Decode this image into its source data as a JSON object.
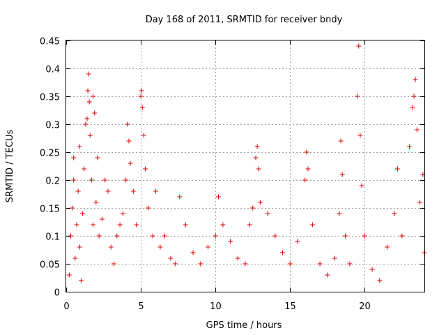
{
  "chart_data": {
    "type": "scatter",
    "title": "Day 168 of 2011, SRMTID for receiver bndy",
    "xlabel": "GPS time / hours",
    "ylabel": "SRMTID / TECUs",
    "xlim": [
      0,
      24
    ],
    "ylim": [
      0,
      0.45
    ],
    "xticks": [
      0,
      5,
      10,
      15,
      20
    ],
    "yticks": [
      0,
      0.05,
      0.1,
      0.15,
      0.2,
      0.25,
      0.3,
      0.35,
      0.4,
      0.45
    ],
    "xtick_labels": [
      "0",
      "5",
      "10",
      "15",
      "20"
    ],
    "ytick_labels": [
      "0",
      "0.05",
      "0.1",
      "0.15",
      "0.2",
      "0.25",
      "0.3",
      "0.35",
      "0.4",
      "0.45"
    ],
    "grid": true,
    "marker": "+",
    "series": [
      {
        "name": "SRMTID",
        "color": "#e00000",
        "points": [
          [
            0.2,
            0.03
          ],
          [
            0.3,
            0.1
          ],
          [
            0.4,
            0.15
          ],
          [
            0.5,
            0.2
          ],
          [
            0.5,
            0.24
          ],
          [
            0.6,
            0.06
          ],
          [
            0.7,
            0.12
          ],
          [
            0.8,
            0.18
          ],
          [
            0.9,
            0.26
          ],
          [
            0.9,
            0.08
          ],
          [
            1.0,
            0.02
          ],
          [
            1.1,
            0.14
          ],
          [
            1.2,
            0.22
          ],
          [
            1.3,
            0.3
          ],
          [
            1.4,
            0.31
          ],
          [
            1.45,
            0.36
          ],
          [
            1.5,
            0.39
          ],
          [
            1.55,
            0.34
          ],
          [
            1.6,
            0.28
          ],
          [
            1.7,
            0.2
          ],
          [
            1.8,
            0.35
          ],
          [
            1.9,
            0.32
          ],
          [
            1.8,
            0.12
          ],
          [
            2.0,
            0.16
          ],
          [
            2.1,
            0.24
          ],
          [
            2.2,
            0.1
          ],
          [
            2.4,
            0.13
          ],
          [
            2.6,
            0.2
          ],
          [
            2.8,
            0.18
          ],
          [
            3.0,
            0.08
          ],
          [
            3.2,
            0.05
          ],
          [
            3.4,
            0.1
          ],
          [
            3.6,
            0.12
          ],
          [
            3.8,
            0.14
          ],
          [
            4.0,
            0.2
          ],
          [
            4.1,
            0.3
          ],
          [
            4.2,
            0.27
          ],
          [
            4.3,
            0.23
          ],
          [
            4.5,
            0.18
          ],
          [
            4.7,
            0.12
          ],
          [
            5.0,
            0.35
          ],
          [
            5.05,
            0.36
          ],
          [
            5.1,
            0.33
          ],
          [
            5.2,
            0.28
          ],
          [
            5.3,
            0.22
          ],
          [
            5.5,
            0.15
          ],
          [
            5.8,
            0.1
          ],
          [
            6.0,
            0.18
          ],
          [
            6.3,
            0.08
          ],
          [
            6.6,
            0.1
          ],
          [
            7.0,
            0.06
          ],
          [
            7.3,
            0.05
          ],
          [
            7.6,
            0.17
          ],
          [
            8.0,
            0.12
          ],
          [
            8.5,
            0.07
          ],
          [
            9.0,
            0.05
          ],
          [
            9.5,
            0.08
          ],
          [
            10.0,
            0.1
          ],
          [
            10.2,
            0.17
          ],
          [
            10.5,
            0.12
          ],
          [
            11.0,
            0.09
          ],
          [
            11.5,
            0.06
          ],
          [
            12.0,
            0.05
          ],
          [
            12.3,
            0.12
          ],
          [
            12.5,
            0.15
          ],
          [
            12.7,
            0.24
          ],
          [
            12.8,
            0.26
          ],
          [
            12.9,
            0.22
          ],
          [
            13.0,
            0.16
          ],
          [
            13.5,
            0.14
          ],
          [
            14.0,
            0.1
          ],
          [
            14.5,
            0.07
          ],
          [
            15.0,
            0.05
          ],
          [
            15.5,
            0.09
          ],
          [
            16.0,
            0.2
          ],
          [
            16.1,
            0.25
          ],
          [
            16.2,
            0.22
          ],
          [
            16.5,
            0.12
          ],
          [
            17.0,
            0.05
          ],
          [
            17.5,
            0.03
          ],
          [
            18.0,
            0.06
          ],
          [
            18.3,
            0.14
          ],
          [
            18.4,
            0.27
          ],
          [
            18.5,
            0.21
          ],
          [
            18.7,
            0.1
          ],
          [
            19.0,
            0.05
          ],
          [
            19.5,
            0.35
          ],
          [
            19.6,
            0.44
          ],
          [
            19.7,
            0.28
          ],
          [
            19.8,
            0.19
          ],
          [
            20.0,
            0.1
          ],
          [
            20.5,
            0.04
          ],
          [
            21.0,
            0.02
          ],
          [
            21.5,
            0.08
          ],
          [
            22.0,
            0.14
          ],
          [
            22.2,
            0.22
          ],
          [
            22.5,
            0.1
          ],
          [
            23.0,
            0.26
          ],
          [
            23.2,
            0.33
          ],
          [
            23.3,
            0.35
          ],
          [
            23.4,
            0.38
          ],
          [
            23.5,
            0.29
          ],
          [
            23.7,
            0.16
          ],
          [
            23.9,
            0.21
          ],
          [
            24.0,
            0.07
          ]
        ]
      }
    ]
  }
}
